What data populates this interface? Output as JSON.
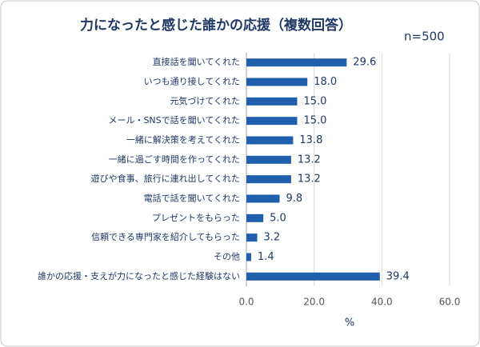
{
  "chart_data": {
    "type": "bar",
    "orientation": "horizontal",
    "title": "力になったと感じた誰かの応援（複数回答）",
    "annotation": "n=500",
    "x_label": "%",
    "categories": [
      "直接話を聞いてくれた",
      "いつも通り接してくれた",
      "元気づけてくれた",
      "メール・SNSで話を聞いてくれた",
      "一緒に解決策を考えてくれた",
      "一緒に過ごす時間を作ってくれた",
      "遊びや食事、旅行に連れ出してくれた",
      "電話で話を聞いてくれた",
      "プレゼントをもらった",
      "信頼できる専門家を紹介してもらった",
      "その他",
      "誰かの応援・支えが力になったと感じた経験はない"
    ],
    "values": [
      29.6,
      18.0,
      15.0,
      15.0,
      13.8,
      13.2,
      13.2,
      9.8,
      5.0,
      3.2,
      1.4,
      39.4
    ],
    "value_labels": [
      "29.6",
      "18.0",
      "15.0",
      "15.0",
      "13.8",
      "13.2",
      "13.2",
      "9.8",
      "5.0",
      "3.2",
      "1.4",
      "39.4"
    ],
    "color": "#1f5fae",
    "xlim": [
      0,
      60
    ],
    "xticks": [
      {
        "value": 0,
        "label": "0.0"
      },
      {
        "value": 20,
        "label": "20.0"
      },
      {
        "value": 40,
        "label": "40.0"
      },
      {
        "value": 60,
        "label": "60.0"
      }
    ],
    "grid": true
  }
}
